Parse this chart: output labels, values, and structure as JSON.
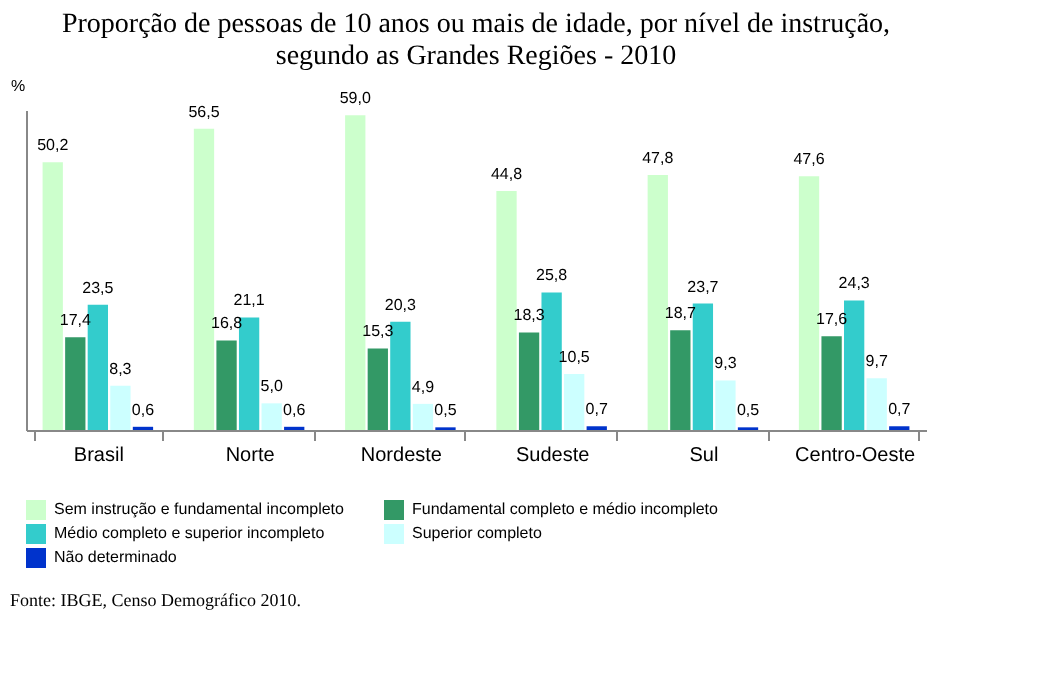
{
  "chart_data": {
    "type": "bar",
    "title": [
      "Proporção de pessoas de 10 anos ou mais de idade, por nível de instrução,",
      "segundo as Grandes Regiões - 2010"
    ],
    "ylabel": "%",
    "categories": [
      "Brasil",
      "Norte",
      "Nordeste",
      "Sudeste",
      "Sul",
      "Centro-Oeste"
    ],
    "series": [
      {
        "name": "Sem instrução e fundamental incompleto",
        "color": "#ccffcc",
        "values": [
          50.2,
          56.5,
          59.0,
          44.8,
          47.8,
          47.6
        ],
        "value_labels": [
          "50,2",
          "56,5",
          "59,0",
          "44,8",
          "47,8",
          "47,6"
        ]
      },
      {
        "name": "Fundamental completo e médio incompleto",
        "color": "#339966",
        "values": [
          17.4,
          16.8,
          15.3,
          18.3,
          18.7,
          17.6
        ],
        "value_labels": [
          "17,4",
          "16,8",
          "15,3",
          "18,3",
          "18,7",
          "17,6"
        ]
      },
      {
        "name": "Médio completo e superior incompleto",
        "color": "#33cccc",
        "values": [
          23.5,
          21.1,
          20.3,
          25.8,
          23.7,
          24.3
        ],
        "value_labels": [
          "23,5",
          "21,1",
          "20,3",
          "25,8",
          "23,7",
          "24,3"
        ]
      },
      {
        "name": "Superior completo",
        "color": "#ccffff",
        "values": [
          8.3,
          5.0,
          4.9,
          10.5,
          9.3,
          9.7
        ],
        "value_labels": [
          "8,3",
          "5,0",
          "4,9",
          "10,5",
          "9,3",
          "9,7"
        ]
      },
      {
        "name": "Não determinado",
        "color": "#0033cc",
        "values": [
          0.6,
          0.6,
          0.5,
          0.7,
          0.5,
          0.7
        ],
        "value_labels": [
          "0,6",
          "0,6",
          "0,5",
          "0,7",
          "0,5",
          "0,7"
        ]
      }
    ],
    "legend": "bottom",
    "grid": false,
    "annotations": [
      "Fonte: IBGE, Censo Demográfico 2010."
    ]
  }
}
